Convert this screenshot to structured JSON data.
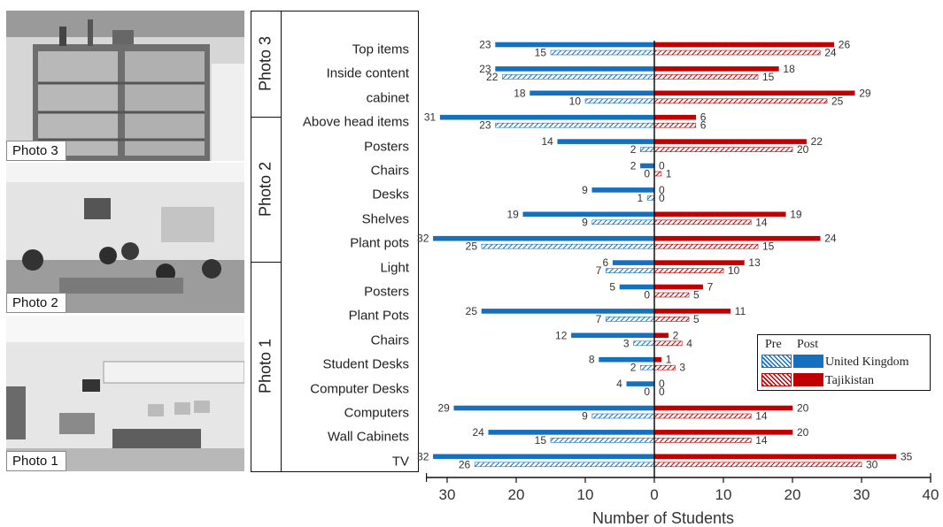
{
  "photos": [
    {
      "id": "photo3",
      "label": "Photo 3"
    },
    {
      "id": "photo2",
      "label": "Photo 2"
    },
    {
      "id": "photo1",
      "label": "Photo 1"
    }
  ],
  "groups": [
    {
      "label": "Photo 3",
      "categories": [
        "Top items",
        "Inside content",
        "cabinet"
      ]
    },
    {
      "label": "Photo 2",
      "categories": [
        "Above head items",
        "Posters",
        "Chairs",
        "Desks",
        "Shelves",
        "Plant pots"
      ]
    },
    {
      "label": "Photo 1",
      "categories": [
        "Light",
        "Posters",
        "Plant Pots",
        "Chairs",
        "Student Desks",
        "Computer  Desks",
        "Computers",
        "Wall Cabinets",
        "TV"
      ]
    }
  ],
  "legend": {
    "pre": "Pre",
    "post": "Post",
    "uk": "United Kingdom",
    "tj": "Tajikistan"
  },
  "colors": {
    "uk": "#1570be",
    "tj": "#c00000",
    "axis": "#111111"
  },
  "chart_data": {
    "type": "bar",
    "orientation": "horizontal-diverging",
    "xlabel": "Number of Students",
    "xlim": [
      -33,
      40
    ],
    "xticks": [
      -30,
      -20,
      -10,
      0,
      10,
      20,
      30,
      40
    ],
    "xtick_labels": [
      "30",
      "20",
      "10",
      "0",
      "10",
      "20",
      "30",
      "40"
    ],
    "categories": [
      "Top items",
      "Inside content",
      "cabinet",
      "Above head items",
      "Posters",
      "Chairs",
      "Desks",
      "Shelves",
      "Plant pots",
      "Light",
      "Posters",
      "Plant Pots",
      "Chairs",
      "Student Desks",
      "Computer  Desks",
      "Computers",
      "Wall Cabinets",
      "TV"
    ],
    "series": [
      {
        "name": "United Kingdom",
        "phase": "Post",
        "side": "left",
        "pattern": "solid",
        "values": [
          23,
          23,
          18,
          31,
          14,
          2,
          9,
          19,
          32,
          6,
          5,
          25,
          12,
          8,
          4,
          29,
          24,
          32
        ]
      },
      {
        "name": "United Kingdom",
        "phase": "Pre",
        "side": "left",
        "pattern": "hatched",
        "values": [
          15,
          22,
          10,
          23,
          2,
          0,
          1,
          9,
          25,
          7,
          0,
          7,
          3,
          2,
          0,
          9,
          15,
          26
        ]
      },
      {
        "name": "Tajikistan",
        "phase": "Post",
        "side": "right",
        "pattern": "solid",
        "values": [
          26,
          18,
          29,
          6,
          22,
          0,
          0,
          19,
          24,
          13,
          7,
          11,
          2,
          1,
          0,
          20,
          20,
          35
        ]
      },
      {
        "name": "Tajikistan",
        "phase": "Pre",
        "side": "right",
        "pattern": "hatched",
        "values": [
          24,
          15,
          25,
          6,
          20,
          1,
          0,
          14,
          15,
          10,
          5,
          5,
          4,
          3,
          0,
          14,
          14,
          30
        ]
      }
    ]
  }
}
